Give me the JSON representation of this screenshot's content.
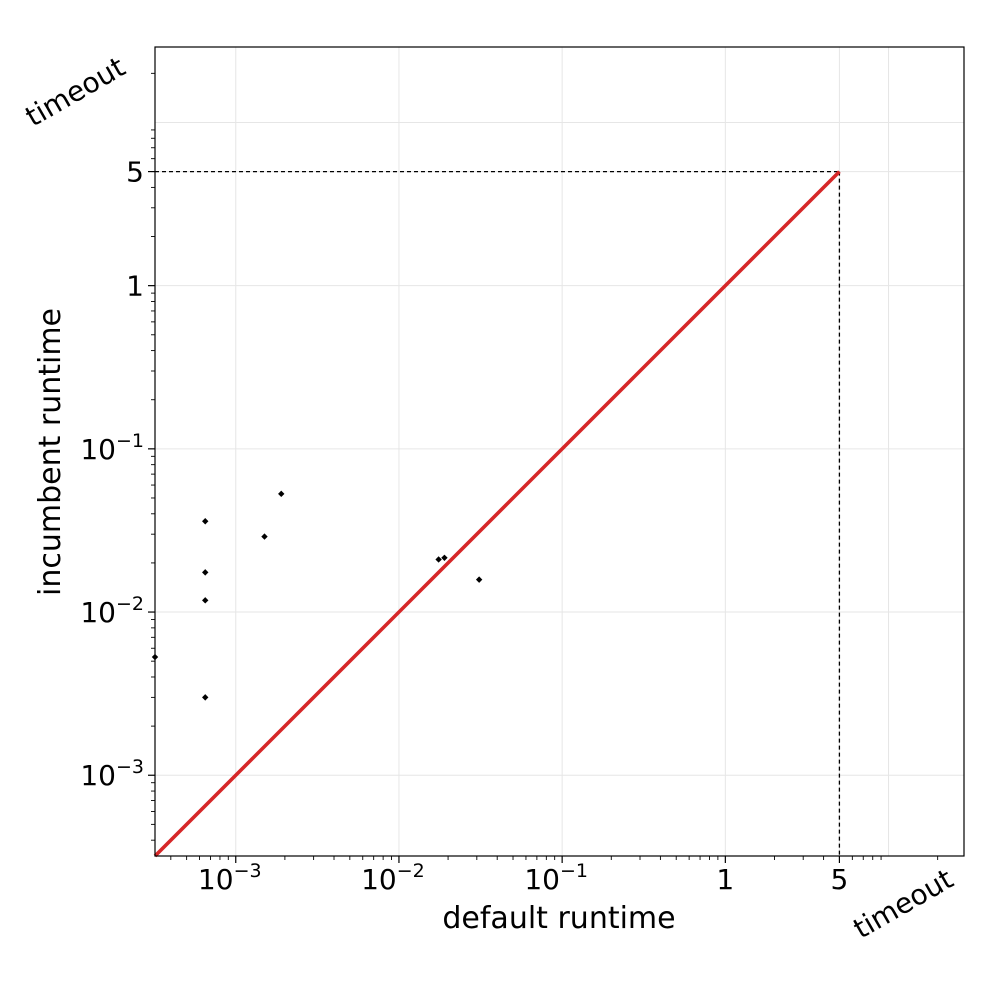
{
  "chart_data": {
    "type": "scatter",
    "title": "",
    "xlabel": "default runtime",
    "ylabel": "incumbent runtime",
    "xscale": "log",
    "yscale": "log",
    "xlim": [
      0.00032,
      29
    ],
    "ylim": [
      0.00032,
      29
    ],
    "grid": true,
    "cutoff": 5,
    "timeout_label": "timeout",
    "x_ticks": [
      {
        "value": 0.001,
        "base": "10",
        "exp": "−3"
      },
      {
        "value": 0.01,
        "base": "10",
        "exp": "−2"
      },
      {
        "value": 0.1,
        "base": "10",
        "exp": "−1"
      },
      {
        "value": 1,
        "base": "1",
        "exp": ""
      },
      {
        "value": 5,
        "base": "5",
        "exp": ""
      }
    ],
    "y_ticks": [
      {
        "value": 0.001,
        "base": "10",
        "exp": "−3"
      },
      {
        "value": 0.01,
        "base": "10",
        "exp": "−2"
      },
      {
        "value": 0.1,
        "base": "10",
        "exp": "−1"
      },
      {
        "value": 1,
        "base": "1",
        "exp": ""
      },
      {
        "value": 5,
        "base": "5",
        "exp": ""
      }
    ],
    "diagonal_color": "#d62728",
    "point_color": "#000000",
    "points": [
      {
        "x": 0.00032,
        "y": 0.0053
      },
      {
        "x": 0.00065,
        "y": 0.036
      },
      {
        "x": 0.00065,
        "y": 0.0175
      },
      {
        "x": 0.00065,
        "y": 0.0118
      },
      {
        "x": 0.00065,
        "y": 0.003
      },
      {
        "x": 0.0015,
        "y": 0.029
      },
      {
        "x": 0.0019,
        "y": 0.053
      },
      {
        "x": 0.0175,
        "y": 0.021
      },
      {
        "x": 0.019,
        "y": 0.0215
      },
      {
        "x": 0.031,
        "y": 0.0158
      }
    ]
  }
}
